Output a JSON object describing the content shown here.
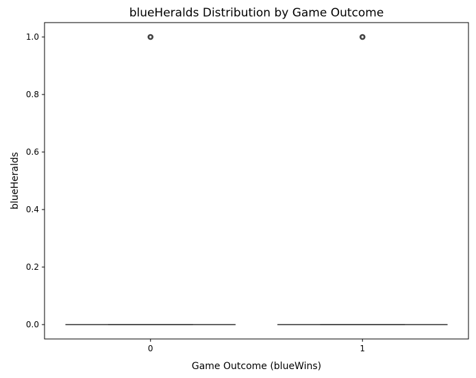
{
  "chart_data": {
    "type": "box",
    "title": "blueHeralds Distribution by Game Outcome",
    "xlabel": "Game Outcome (blueWins)",
    "ylabel": "blueHeralds",
    "categories": [
      "0",
      "1"
    ],
    "yticks": [
      "0.0",
      "0.2",
      "0.4",
      "0.6",
      "0.8",
      "1.0"
    ],
    "ylim": [
      -0.05,
      1.05
    ],
    "grid": false,
    "boxes": [
      {
        "category": "0",
        "min": 0,
        "q1": 0,
        "median": 0,
        "q3": 0,
        "max": 0,
        "outliers": [
          1
        ]
      },
      {
        "category": "1",
        "min": 0,
        "q1": 0,
        "median": 0,
        "q3": 0,
        "max": 0,
        "outliers": [
          1
        ]
      }
    ],
    "colors": {
      "line": "#3f3f3f",
      "outlier": "#3f3f3f",
      "axis": "#000000"
    }
  }
}
